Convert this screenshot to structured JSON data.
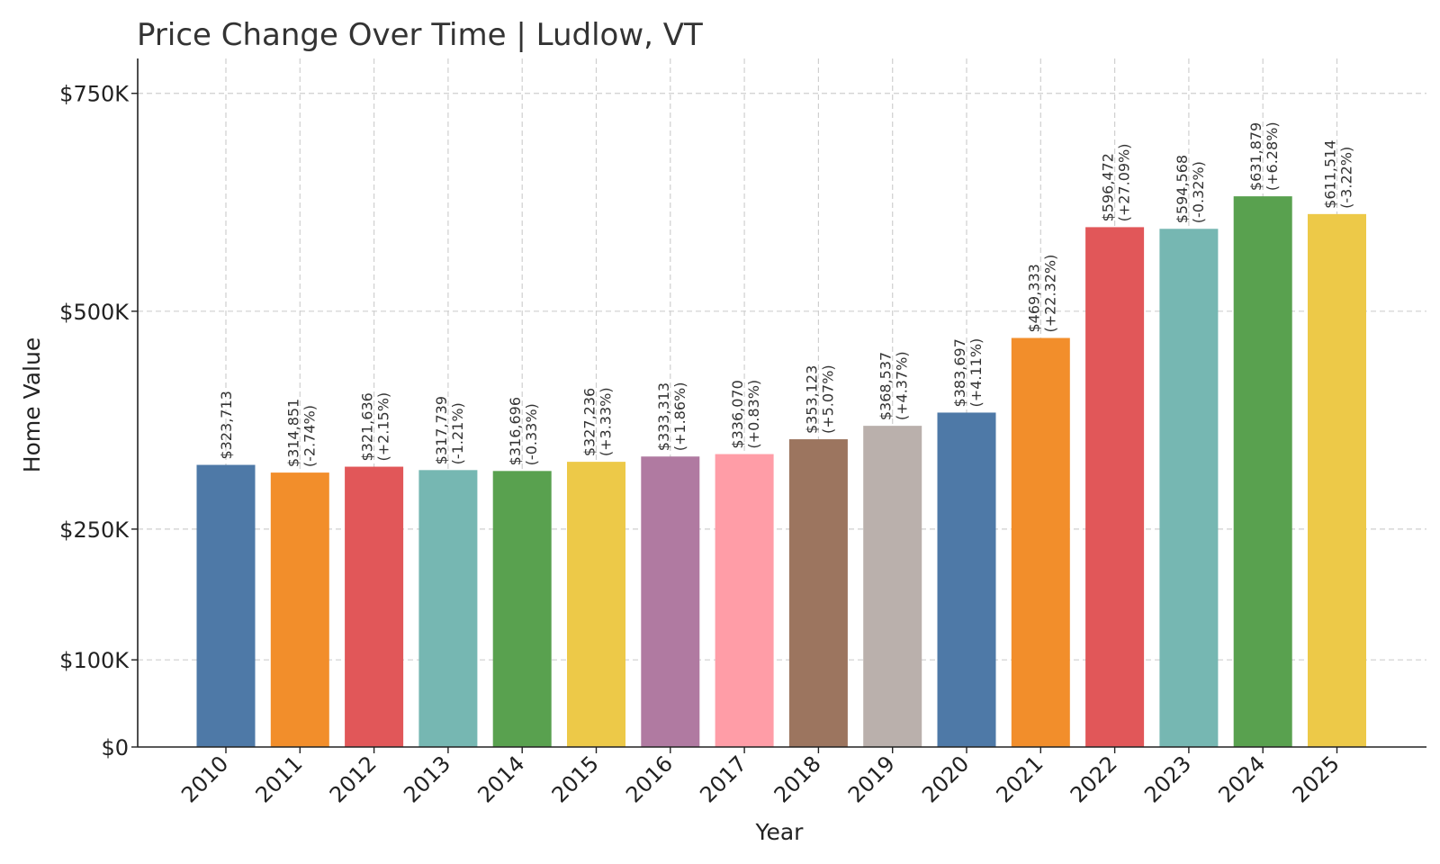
{
  "chart_data": {
    "type": "bar",
    "title": "Price Change Over Time | Ludlow, VT",
    "xlabel": "Year",
    "ylabel": "Home Value",
    "ylim": [
      0,
      790000
    ],
    "yticks": [
      {
        "value": 0,
        "label": "$0"
      },
      {
        "value": 100000,
        "label": "$100K"
      },
      {
        "value": 250000,
        "label": "$250K"
      },
      {
        "value": 500000,
        "label": "$500K"
      },
      {
        "value": 750000,
        "label": "$750K"
      }
    ],
    "grid": true,
    "categories": [
      "2010",
      "2011",
      "2012",
      "2013",
      "2014",
      "2015",
      "2016",
      "2017",
      "2018",
      "2019",
      "2020",
      "2021",
      "2022",
      "2023",
      "2024",
      "2025"
    ],
    "values": [
      323713,
      314851,
      321636,
      317739,
      316696,
      327236,
      333313,
      336070,
      353123,
      368537,
      383697,
      469333,
      596472,
      594568,
      631879,
      611514
    ],
    "value_labels": [
      "$323,713",
      "$314,851",
      "$321,636",
      "$317,739",
      "$316,696",
      "$327,236",
      "$333,313",
      "$336,070",
      "$353,123",
      "$368,537",
      "$383,697",
      "$469,333",
      "$596,472",
      "$594,568",
      "$631,879",
      "$611,514"
    ],
    "change_labels": [
      "",
      "(-2.74%)",
      "(+2.15%)",
      "(-1.21%)",
      "(-0.33%)",
      "(+3.33%)",
      "(+1.86%)",
      "(+0.83%)",
      "(+5.07%)",
      "(+4.37%)",
      "(+4.11%)",
      "(+22.32%)",
      "(+27.09%)",
      "(-0.32%)",
      "(+6.28%)",
      "(-3.22%)"
    ],
    "colors": [
      "#4e79a7",
      "#f28e2b",
      "#e15759",
      "#76b7b2",
      "#59a14f",
      "#edc948",
      "#b07aa1",
      "#ff9da7",
      "#9c755f",
      "#bab0ac",
      "#4e79a7",
      "#f28e2b",
      "#e15759",
      "#76b7b2",
      "#59a14f",
      "#edc948"
    ]
  }
}
